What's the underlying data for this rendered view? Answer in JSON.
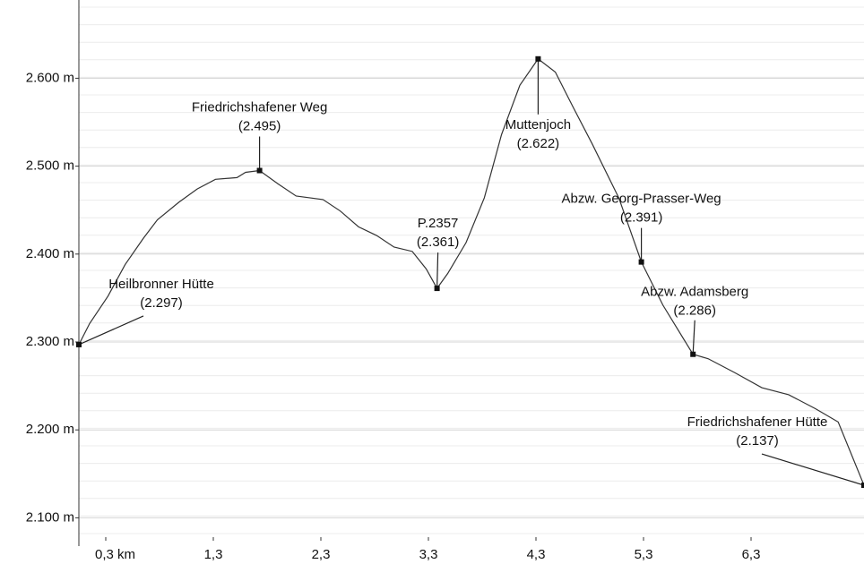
{
  "chart_data": {
    "type": "line",
    "x": [
      0.05,
      0.15,
      0.32,
      0.48,
      0.65,
      0.78,
      0.98,
      1.15,
      1.32,
      1.52,
      1.6,
      1.73,
      1.9,
      2.07,
      2.32,
      2.48,
      2.65,
      2.82,
      2.98,
      3.15,
      3.28,
      3.38,
      3.48,
      3.65,
      3.82,
      3.98,
      4.15,
      4.32,
      4.48,
      4.65,
      4.82,
      5.07,
      5.28,
      5.48,
      5.76,
      5.9,
      6.15,
      6.4,
      6.65,
      6.9,
      7.11,
      7.35
    ],
    "series": [
      {
        "color": "#333333",
        "values": [
          2297,
          2321,
          2352,
          2388,
          2418,
          2439,
          2459,
          2474,
          2485,
          2487,
          2493,
          2495,
          2480,
          2466,
          2462,
          2449,
          2431,
          2421,
          2408,
          2403,
          2383,
          2361,
          2378,
          2413,
          2464,
          2536,
          2592,
          2622,
          2607,
          2566,
          2526,
          2464,
          2391,
          2342,
          2286,
          2281,
          2265,
          2248,
          2240,
          2224,
          2209,
          2137
        ]
      }
    ],
    "xlim": [
      0.05,
      7.35
    ],
    "ylim": [
      2078,
      2689
    ],
    "xticks": [
      {
        "value": 0.3,
        "label": "0,3 km"
      },
      {
        "value": 1.3,
        "label": "1,3"
      },
      {
        "value": 2.3,
        "label": "2,3"
      },
      {
        "value": 3.3,
        "label": "3,3"
      },
      {
        "value": 4.3,
        "label": "4,3"
      },
      {
        "value": 5.3,
        "label": "5,3"
      },
      {
        "value": 6.3,
        "label": "6,3"
      }
    ],
    "yticks": [
      {
        "value": 2100,
        "label": "2.100 m"
      },
      {
        "value": 2200,
        "label": "2.200 m"
      },
      {
        "value": 2300,
        "label": "2.300 m"
      },
      {
        "value": 2400,
        "label": "2.400 m"
      },
      {
        "value": 2500,
        "label": "2.500 m"
      },
      {
        "value": 2600,
        "label": "2.600 m"
      }
    ],
    "grid": true,
    "annotations": [
      {
        "label": "Heilbronner Hütte",
        "x": 0.05,
        "value": 2297,
        "value_label": "(2.297)"
      },
      {
        "label": "Friedrichshafener Weg",
        "x": 1.73,
        "value": 2495,
        "value_label": "(2.495)"
      },
      {
        "label": "P.2357",
        "x": 3.38,
        "value": 2361,
        "value_label": "(2.361)"
      },
      {
        "label": "Muttenjoch",
        "x": 4.32,
        "value": 2622,
        "value_label": "(2.622)"
      },
      {
        "label": "Abzw. Georg-Prasser-Weg",
        "x": 5.28,
        "value": 2391,
        "value_label": "(2.391)"
      },
      {
        "label": "Abzw. Adamsberg",
        "x": 5.76,
        "value": 2286,
        "value_label": "(2.286)"
      },
      {
        "label": "Friedrichshafener Hütte",
        "x": 7.35,
        "value": 2137,
        "value_label": "(2.137)"
      }
    ]
  }
}
